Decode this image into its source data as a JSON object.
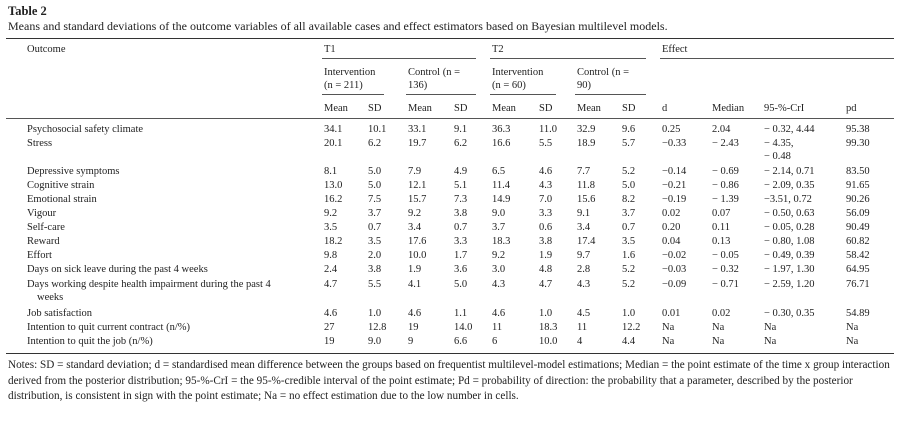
{
  "table_label": "Table 2",
  "caption": "Means and standard deviations of the outcome variables of all available cases and effect estimators based on Bayesian multilevel models.",
  "header": {
    "outcome": "Outcome",
    "t1": "T1",
    "t2": "T2",
    "effect": "Effect",
    "t1_intervention_1": "Intervention",
    "t1_intervention_2": "(n = 211)",
    "t1_control_1": "Control (n =",
    "t1_control_2": "136)",
    "t2_intervention_1": "Intervention",
    "t2_intervention_2": "(n = 60)",
    "t2_control_1": "Control (n =",
    "t2_control_2": "90)",
    "cols": [
      "Mean",
      "SD",
      "Mean",
      "SD",
      "Mean",
      "SD",
      "Mean",
      "SD",
      "d",
      "Median",
      "95-%-CrI",
      "pd"
    ]
  },
  "rows": [
    {
      "label": "Psychosocial safety climate",
      "v": [
        "34.1",
        "10.1",
        "33.1",
        "9.1",
        "36.3",
        "11.0",
        "32.9",
        "9.6",
        "0.25",
        "2.04",
        "− 0.32, 4.44",
        "95.38"
      ]
    },
    {
      "label": "Stress",
      "v": [
        "20.1",
        "6.2",
        "19.7",
        "6.2",
        "16.6",
        "5.5",
        "18.9",
        "5.7",
        "−0.33",
        "− 2.43",
        "− 4.35,",
        "99.30"
      ],
      "ci_line2": "− 0.48"
    },
    {
      "label": "Depressive symptoms",
      "v": [
        "8.1",
        "5.0",
        "7.9",
        "4.9",
        "6.5",
        "4.6",
        "7.7",
        "5.2",
        "−0.14",
        "− 0.69",
        "− 2.14, 0.71",
        "83.50"
      ]
    },
    {
      "label": "Cognitive strain",
      "v": [
        "13.0",
        "5.0",
        "12.1",
        "5.1",
        "11.4",
        "4.3",
        "11.8",
        "5.0",
        "−0.21",
        "− 0.86",
        "− 2.09, 0.35",
        "91.65"
      ]
    },
    {
      "label": "Emotional strain",
      "v": [
        "16.2",
        "7.5",
        "15.7",
        "7.3",
        "14.9",
        "7.0",
        "15.6",
        "8.2",
        "−0.19",
        "− 1.39",
        "−3.51, 0.72",
        "90.26"
      ]
    },
    {
      "label": "Vigour",
      "v": [
        "9.2",
        "3.7",
        "9.2",
        "3.8",
        "9.0",
        "3.3",
        "9.1",
        "3.7",
        "0.02",
        "0.07",
        "− 0.50, 0.63",
        "56.09"
      ]
    },
    {
      "label": "Self-care",
      "v": [
        "3.5",
        "0.7",
        "3.4",
        "0.7",
        "3.7",
        "0.6",
        "3.4",
        "0.7",
        "0.20",
        "0.11",
        "− 0.05, 0.28",
        "90.49"
      ]
    },
    {
      "label": "Reward",
      "v": [
        "18.2",
        "3.5",
        "17.6",
        "3.3",
        "18.3",
        "3.8",
        "17.4",
        "3.5",
        "0.04",
        "0.13",
        "− 0.80, 1.08",
        "60.82"
      ]
    },
    {
      "label": "Effort",
      "v": [
        "9.8",
        "2.0",
        "10.0",
        "1.7",
        "9.2",
        "1.9",
        "9.7",
        "1.6",
        "−0.02",
        "− 0.05",
        "− 0.49, 0.39",
        "58.42"
      ]
    },
    {
      "label": "Days on sick leave during the past 4 weeks",
      "v": [
        "2.4",
        "3.8",
        "1.9",
        "3.6",
        "3.0",
        "4.8",
        "2.8",
        "5.2",
        "−0.03",
        "− 0.32",
        "− 1.97, 1.30",
        "64.95"
      ]
    },
    {
      "label": "Days working despite health impairment during the past 4",
      "label2": "weeks",
      "v": [
        "4.7",
        "5.5",
        "4.1",
        "5.0",
        "4.3",
        "4.7",
        "4.3",
        "5.2",
        "−0.09",
        "− 0.71",
        "− 2.59, 1.20",
        "76.71"
      ]
    },
    {
      "label": "Job satisfaction",
      "v": [
        "4.6",
        "1.0",
        "4.6",
        "1.1",
        "4.6",
        "1.0",
        "4.5",
        "1.0",
        "0.01",
        "0.02",
        "− 0.30, 0.35",
        "54.89"
      ]
    },
    {
      "label": "Intention to quit current contract (n/%)",
      "v": [
        "27",
        "12.8",
        "19",
        "14.0",
        "11",
        "18.3",
        "11",
        "12.2",
        "Na",
        "Na",
        "Na",
        "Na"
      ]
    },
    {
      "label": "Intention to quit the job (n/%)",
      "v": [
        "19",
        "9.0",
        "9",
        "6.6",
        "6",
        "10.0",
        "4",
        "4.4",
        "Na",
        "Na",
        "Na",
        "Na"
      ]
    }
  ],
  "notes": "Notes: SD = standard deviation; d = standardised mean difference between the groups based on frequentist multilevel-model estimations; Median = the point estimate of the time x group interaction derived from the posterior distribution; 95-%-CrI = the 95-%-credible interval of the point estimate; Pd = probability of direction: the probability that a parameter, described by the posterior distribution, is consistent in sign with the point estimate; Na = no effect estimation due to the low number in cells."
}
